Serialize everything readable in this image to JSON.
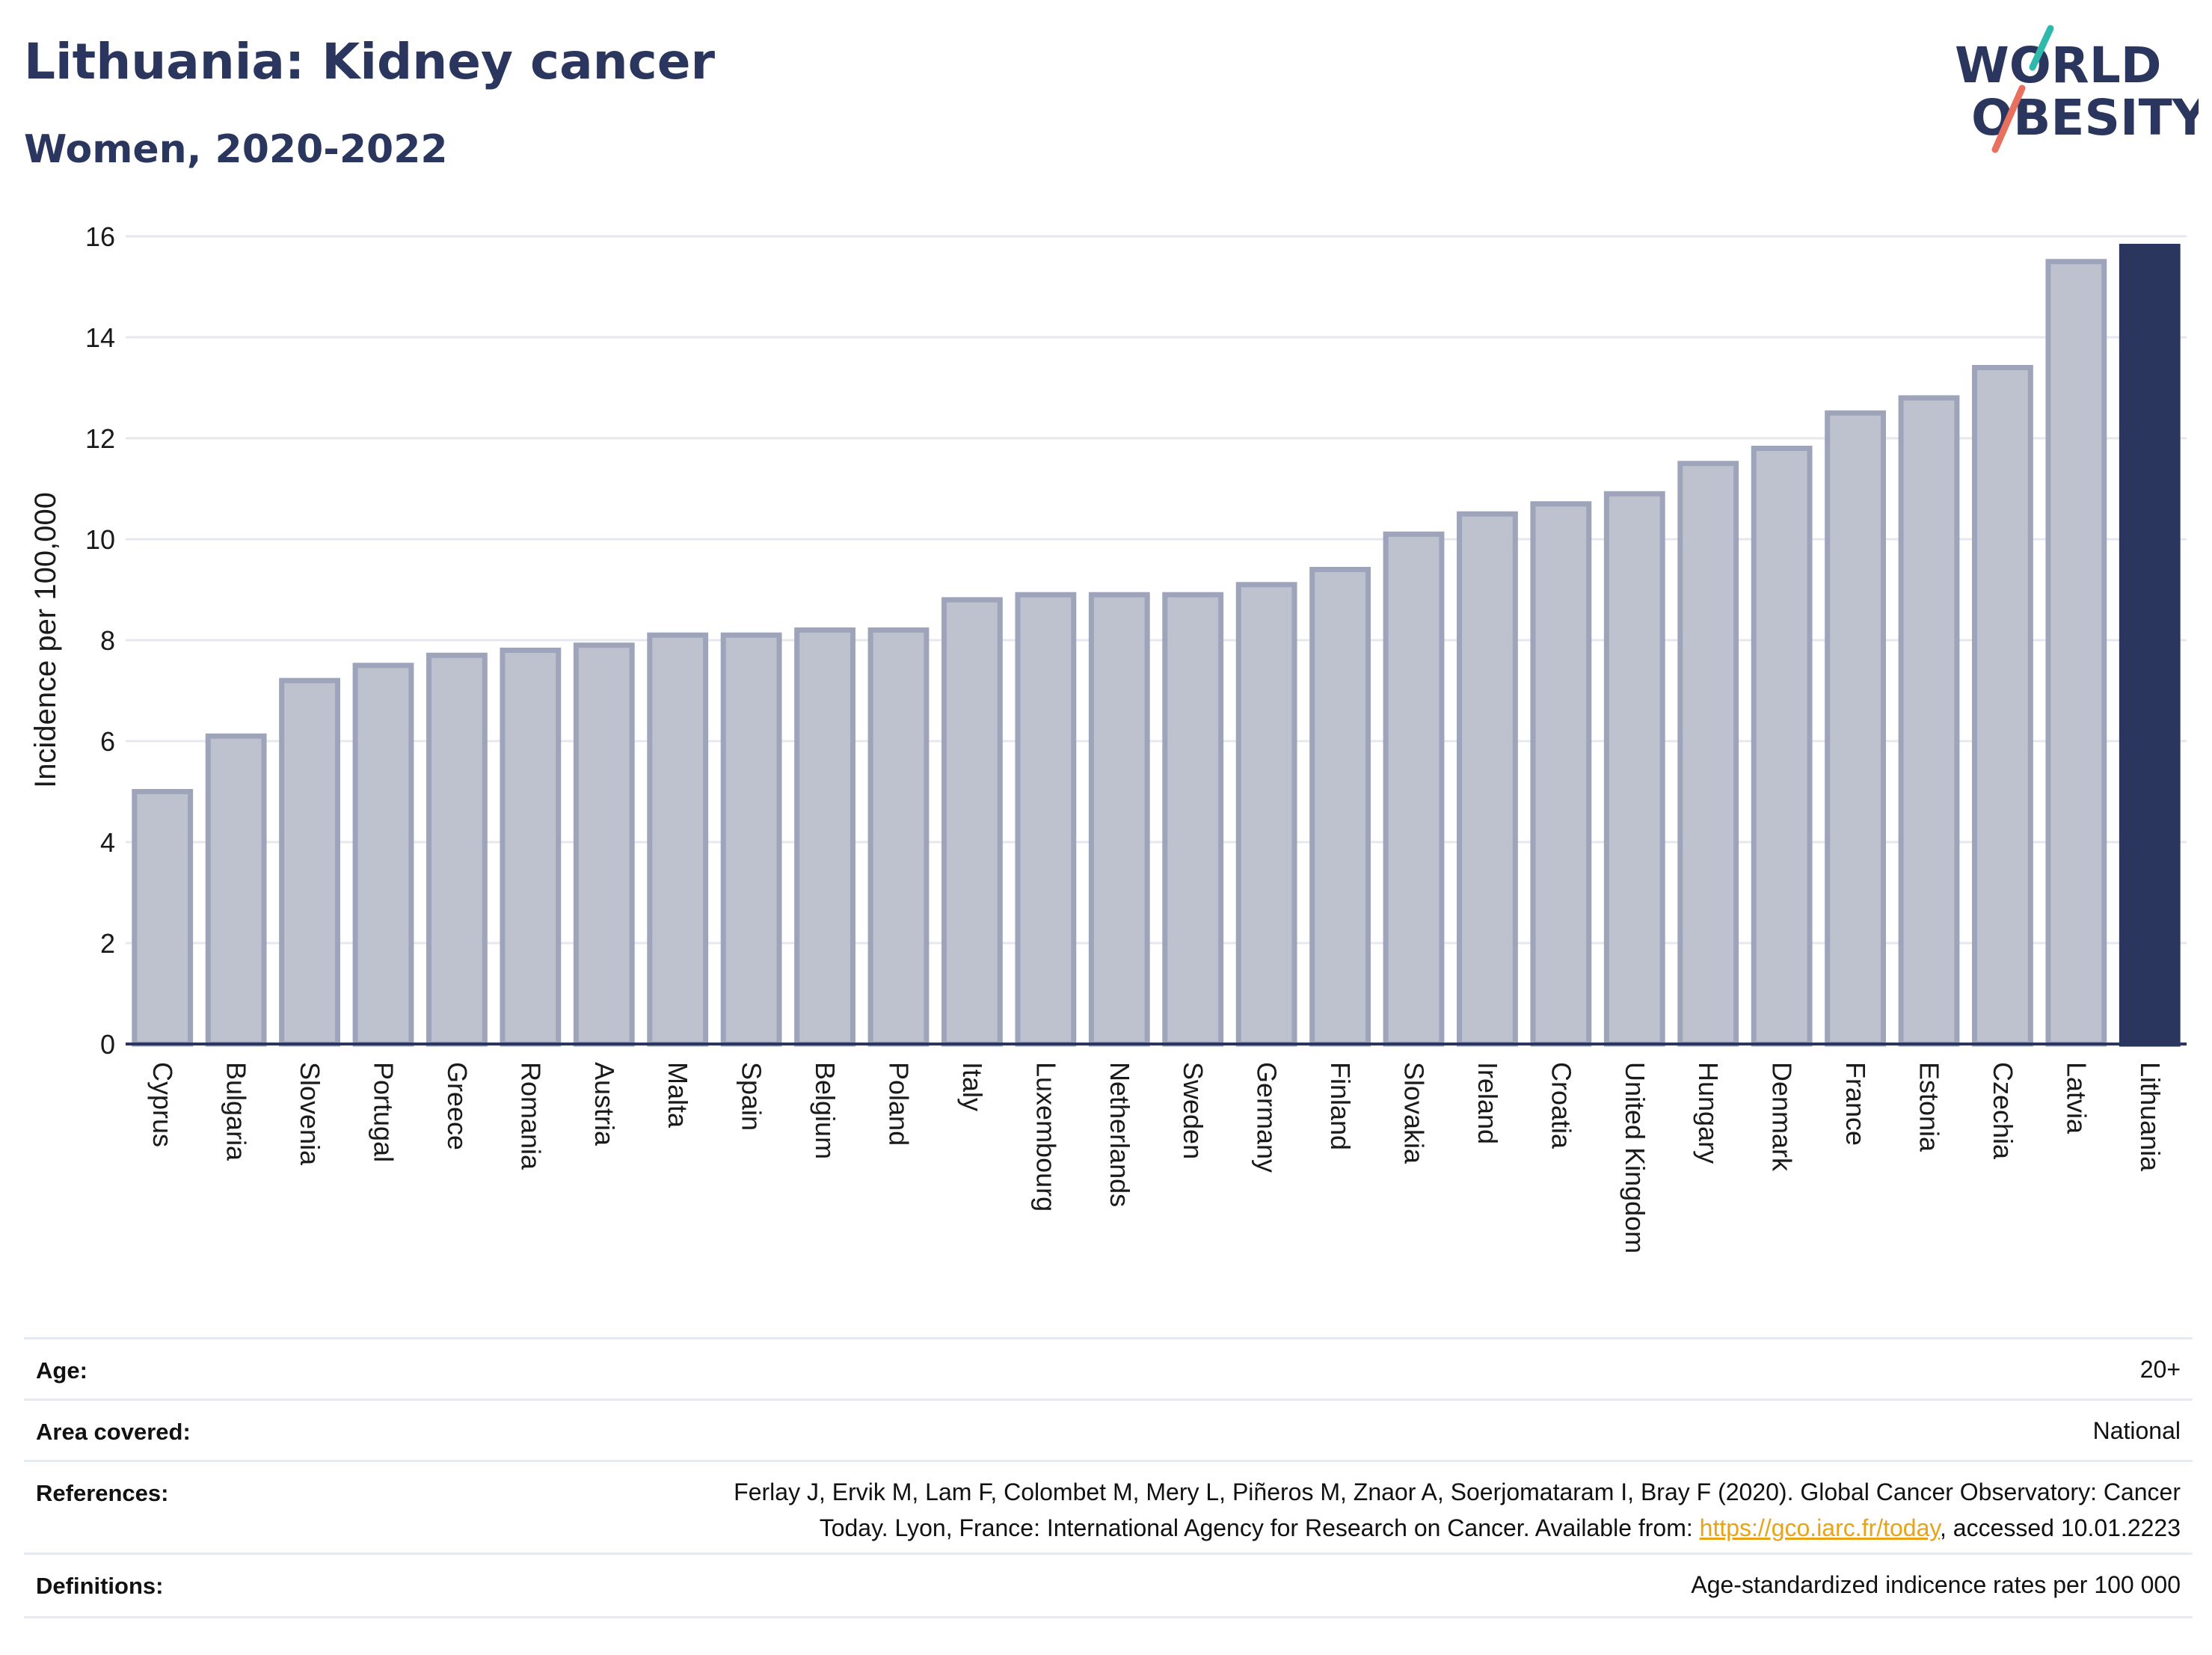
{
  "header": {
    "title": "Lithuania: Kidney cancer",
    "subtitle": "Women, 2020-2022"
  },
  "logo": {
    "line1": "WORLD",
    "line2": "OBESITY",
    "accent_teal": "#2fb8ac",
    "accent_coral": "#e8705e",
    "text_color": "#2b365e"
  },
  "colors": {
    "bar_fill": "#bec1ce",
    "bar_stroke": "#9ea4b9",
    "highlight_fill": "#2b365e",
    "grid": "#e6e8ef",
    "axis": "#2b365e"
  },
  "chart_data": {
    "type": "bar",
    "title": "Lithuania: Kidney cancer",
    "subtitle": "Women, 2020-2022",
    "xlabel": "",
    "ylabel": "Incidence per 100,000",
    "ylim": [
      0,
      16
    ],
    "yticks": [
      0,
      2,
      4,
      6,
      8,
      10,
      12,
      14,
      16
    ],
    "grid": true,
    "highlight": "Lithuania",
    "categories": [
      "Cyprus",
      "Bulgaria",
      "Slovenia",
      "Portugal",
      "Greece",
      "Romania",
      "Austria",
      "Malta",
      "Spain",
      "Belgium",
      "Poland",
      "Italy",
      "Luxembourg",
      "Netherlands",
      "Sweden",
      "Germany",
      "Finland",
      "Slovakia",
      "Ireland",
      "Croatia",
      "United Kingdom",
      "Hungary",
      "Denmark",
      "France",
      "Estonia",
      "Czechia",
      "Latvia",
      "Lithuania"
    ],
    "values": [
      5.0,
      6.1,
      7.2,
      7.5,
      7.7,
      7.8,
      7.9,
      8.1,
      8.1,
      8.2,
      8.2,
      8.8,
      8.9,
      8.9,
      8.9,
      9.1,
      9.4,
      10.1,
      10.5,
      10.7,
      10.9,
      11.5,
      11.8,
      12.5,
      12.8,
      13.4,
      15.5,
      15.8
    ]
  },
  "info": {
    "age": {
      "label": "Age:",
      "value": "20+"
    },
    "area": {
      "label": "Area covered:",
      "value": "National"
    },
    "references": {
      "label": "References:",
      "line1": "Ferlay J, Ervik M, Lam F, Colombet M, Mery L, Piñeros M, Znaor A, Soerjomataram I, Bray F (2020). Global Cancer Observatory: Cancer",
      "line2_pre": "Today. Lyon, France: International Agency for Research on Cancer. Available from: ",
      "link": "https://gco.iarc.fr/today",
      "line2_post": ", accessed 10.01.2223"
    },
    "definitions": {
      "label": "Definitions:",
      "value": "Age-standardized indicence rates per 100 000"
    }
  }
}
